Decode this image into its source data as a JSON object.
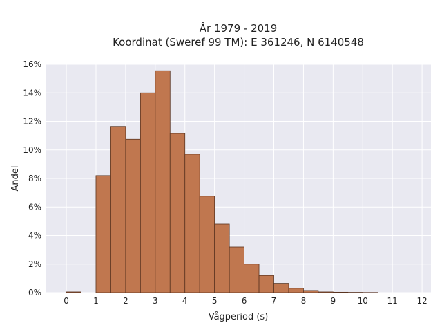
{
  "chart_data": {
    "type": "bar",
    "title_line1": "År 1979 - 2019",
    "title_line2": "Koordinat (Sweref 99 TM): E 361246, N 6140548",
    "xlabel": "Vågperiod (s)",
    "ylabel": "Andel",
    "xlim": [
      -0.7,
      12.3
    ],
    "ylim": [
      0,
      16
    ],
    "x_ticks": [
      0,
      1,
      2,
      3,
      4,
      5,
      6,
      7,
      8,
      9,
      10,
      11,
      12
    ],
    "y_ticks": [
      0,
      2,
      4,
      6,
      8,
      10,
      12,
      14,
      16
    ],
    "y_tick_suffix": "%",
    "grid": true,
    "bin_width": 0.5,
    "bins": [
      {
        "x0": 0.0,
        "x1": 0.5,
        "value": 0.05
      },
      {
        "x0": 0.5,
        "x1": 1.0,
        "value": 0.0
      },
      {
        "x0": 1.0,
        "x1": 1.5,
        "value": 8.2
      },
      {
        "x0": 1.5,
        "x1": 2.0,
        "value": 11.65
      },
      {
        "x0": 2.0,
        "x1": 2.5,
        "value": 10.75
      },
      {
        "x0": 2.5,
        "x1": 3.0,
        "value": 14.0
      },
      {
        "x0": 3.0,
        "x1": 3.5,
        "value": 15.55
      },
      {
        "x0": 3.5,
        "x1": 4.0,
        "value": 11.15
      },
      {
        "x0": 4.0,
        "x1": 4.5,
        "value": 9.7
      },
      {
        "x0": 4.5,
        "x1": 5.0,
        "value": 6.75
      },
      {
        "x0": 5.0,
        "x1": 5.5,
        "value": 4.8
      },
      {
        "x0": 5.5,
        "x1": 6.0,
        "value": 3.2
      },
      {
        "x0": 6.0,
        "x1": 6.5,
        "value": 2.0
      },
      {
        "x0": 6.5,
        "x1": 7.0,
        "value": 1.2
      },
      {
        "x0": 7.0,
        "x1": 7.5,
        "value": 0.65
      },
      {
        "x0": 7.5,
        "x1": 8.0,
        "value": 0.3
      },
      {
        "x0": 8.0,
        "x1": 8.5,
        "value": 0.15
      },
      {
        "x0": 8.5,
        "x1": 9.0,
        "value": 0.05
      },
      {
        "x0": 9.0,
        "x1": 9.5,
        "value": 0.03
      },
      {
        "x0": 9.5,
        "x1": 10.0,
        "value": 0.02
      },
      {
        "x0": 10.0,
        "x1": 10.5,
        "value": 0.01
      }
    ],
    "colors": {
      "bar_fill": "#c0774f",
      "bar_edge": "#5a3420",
      "plot_background": "#e9e9f1",
      "grid": "#ffffff"
    }
  }
}
